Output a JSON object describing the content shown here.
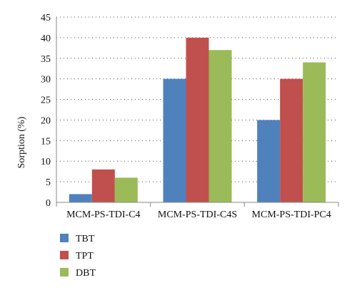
{
  "chart_data": {
    "type": "bar",
    "title": "",
    "xlabel": "",
    "ylabel": "Sorption (%)",
    "ylim": [
      0,
      45
    ],
    "yticks": [
      0,
      5,
      10,
      15,
      20,
      25,
      30,
      35,
      40,
      45
    ],
    "grid": "horizontal dotted",
    "legend_position": "bottom-left",
    "categories": [
      "MCM-PS-TDI-C4",
      "MCM-PS-TDI-C4S",
      "MCM-PS-TDI-PC4"
    ],
    "series": [
      {
        "name": "TBT",
        "color": "#4f81bd",
        "values": [
          2,
          30,
          20
        ]
      },
      {
        "name": "TPT",
        "color": "#c0504d",
        "values": [
          8,
          40,
          30
        ]
      },
      {
        "name": "DBT",
        "color": "#9bbb59",
        "values": [
          6,
          37,
          34
        ]
      }
    ]
  }
}
